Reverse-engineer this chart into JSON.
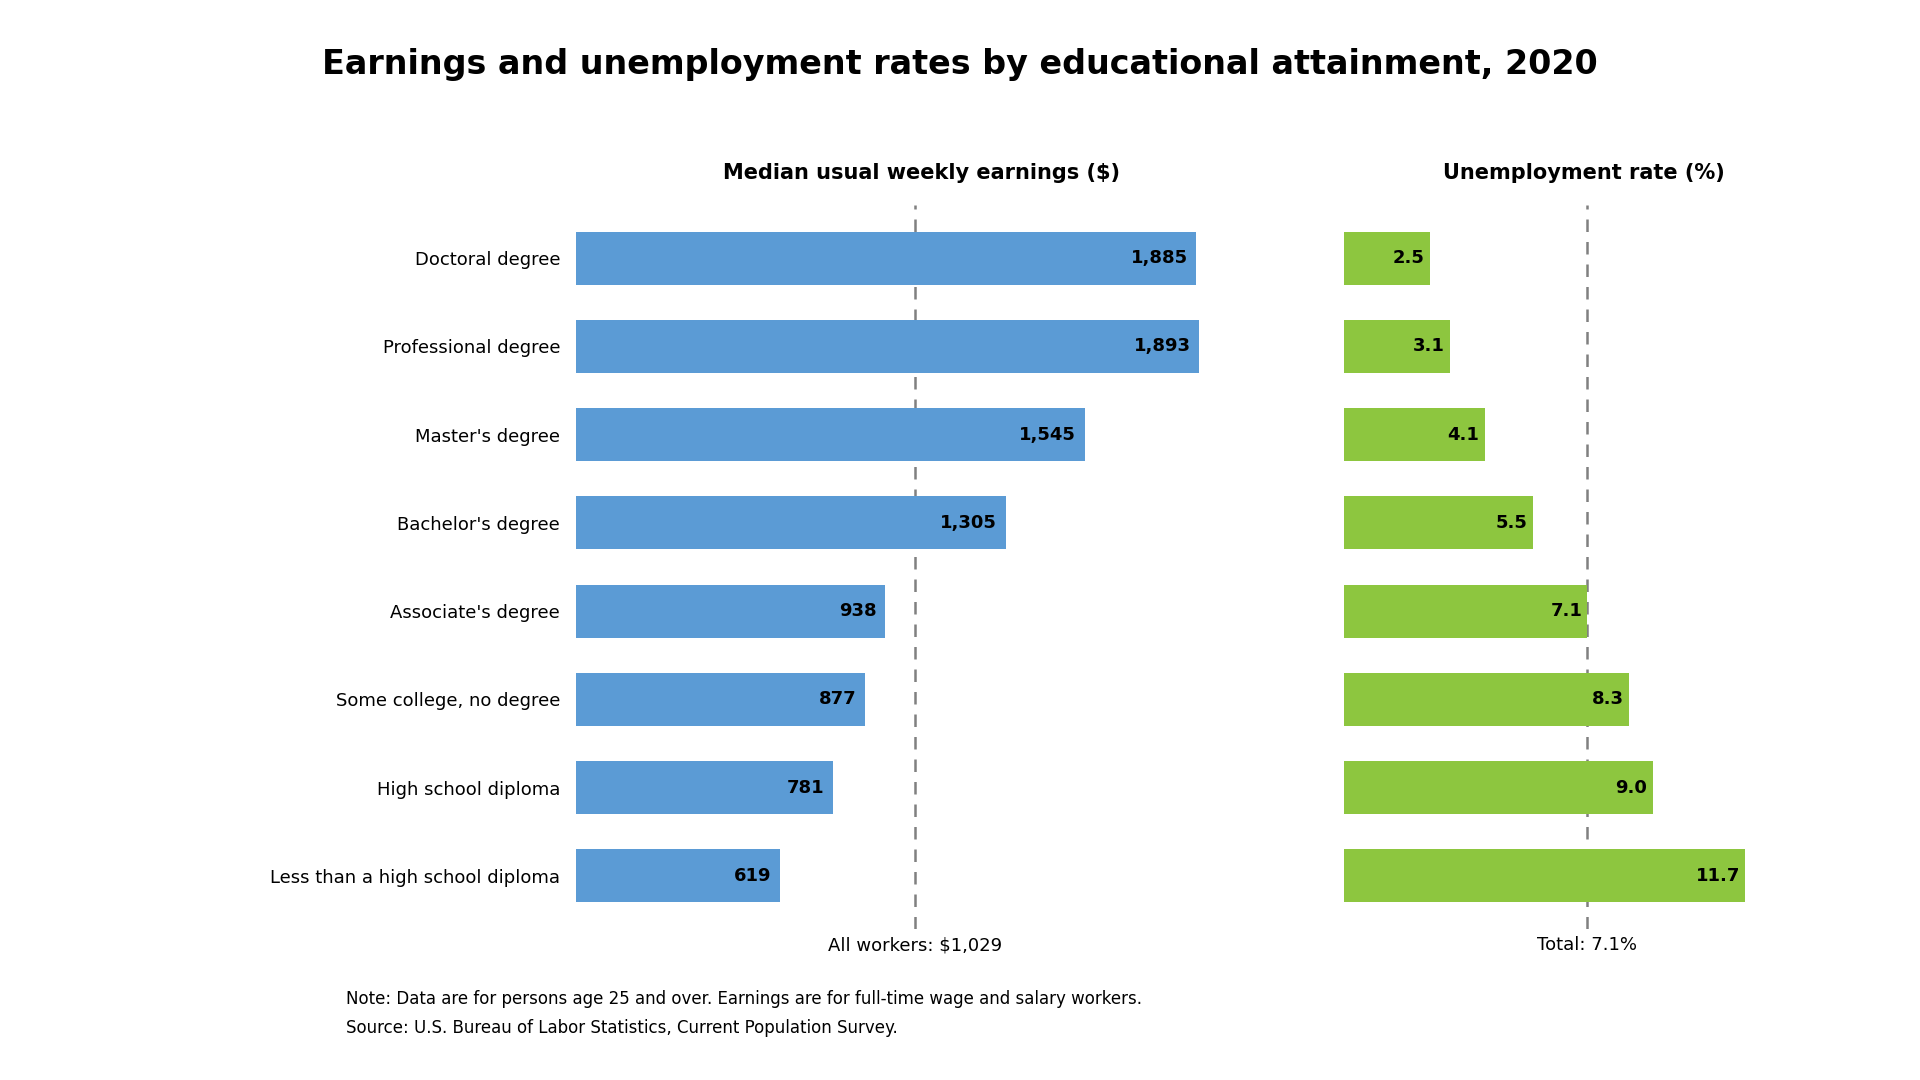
{
  "title": "Earnings and unemployment rates by educational attainment, 2020",
  "categories": [
    "Doctoral degree",
    "Professional degree",
    "Master's degree",
    "Bachelor's degree",
    "Associate's degree",
    "Some college, no degree",
    "High school diploma",
    "Less than a high school diploma"
  ],
  "earnings": [
    1885,
    1893,
    1545,
    1305,
    938,
    877,
    781,
    619
  ],
  "unemployment": [
    2.5,
    3.1,
    4.1,
    5.5,
    7.1,
    8.3,
    9.0,
    11.7
  ],
  "earnings_color": "#5B9BD5",
  "unemployment_color": "#8DC63F",
  "earnings_label": "Median usual weekly earnings ($)",
  "unemployment_label": "Unemployment rate (%)",
  "all_workers_earnings": 1029,
  "all_workers_unemployment": 7.1,
  "all_workers_earnings_text": "All workers: $1,029",
  "all_workers_unemployment_text": "Total: 7.1%",
  "note_line1": "Note: Data are for persons age 25 and over. Earnings are for full-time wage and salary workers.",
  "note_line2": "Source: U.S. Bureau of Labor Statistics, Current Population Survey.",
  "earnings_max": 2100,
  "unemployment_max": 14,
  "background_color": "#FFFFFF",
  "bar_text_color": "#000000",
  "title_fontsize": 24,
  "label_fontsize": 15,
  "tick_fontsize": 13,
  "note_fontsize": 12,
  "bar_value_fontsize": 13
}
